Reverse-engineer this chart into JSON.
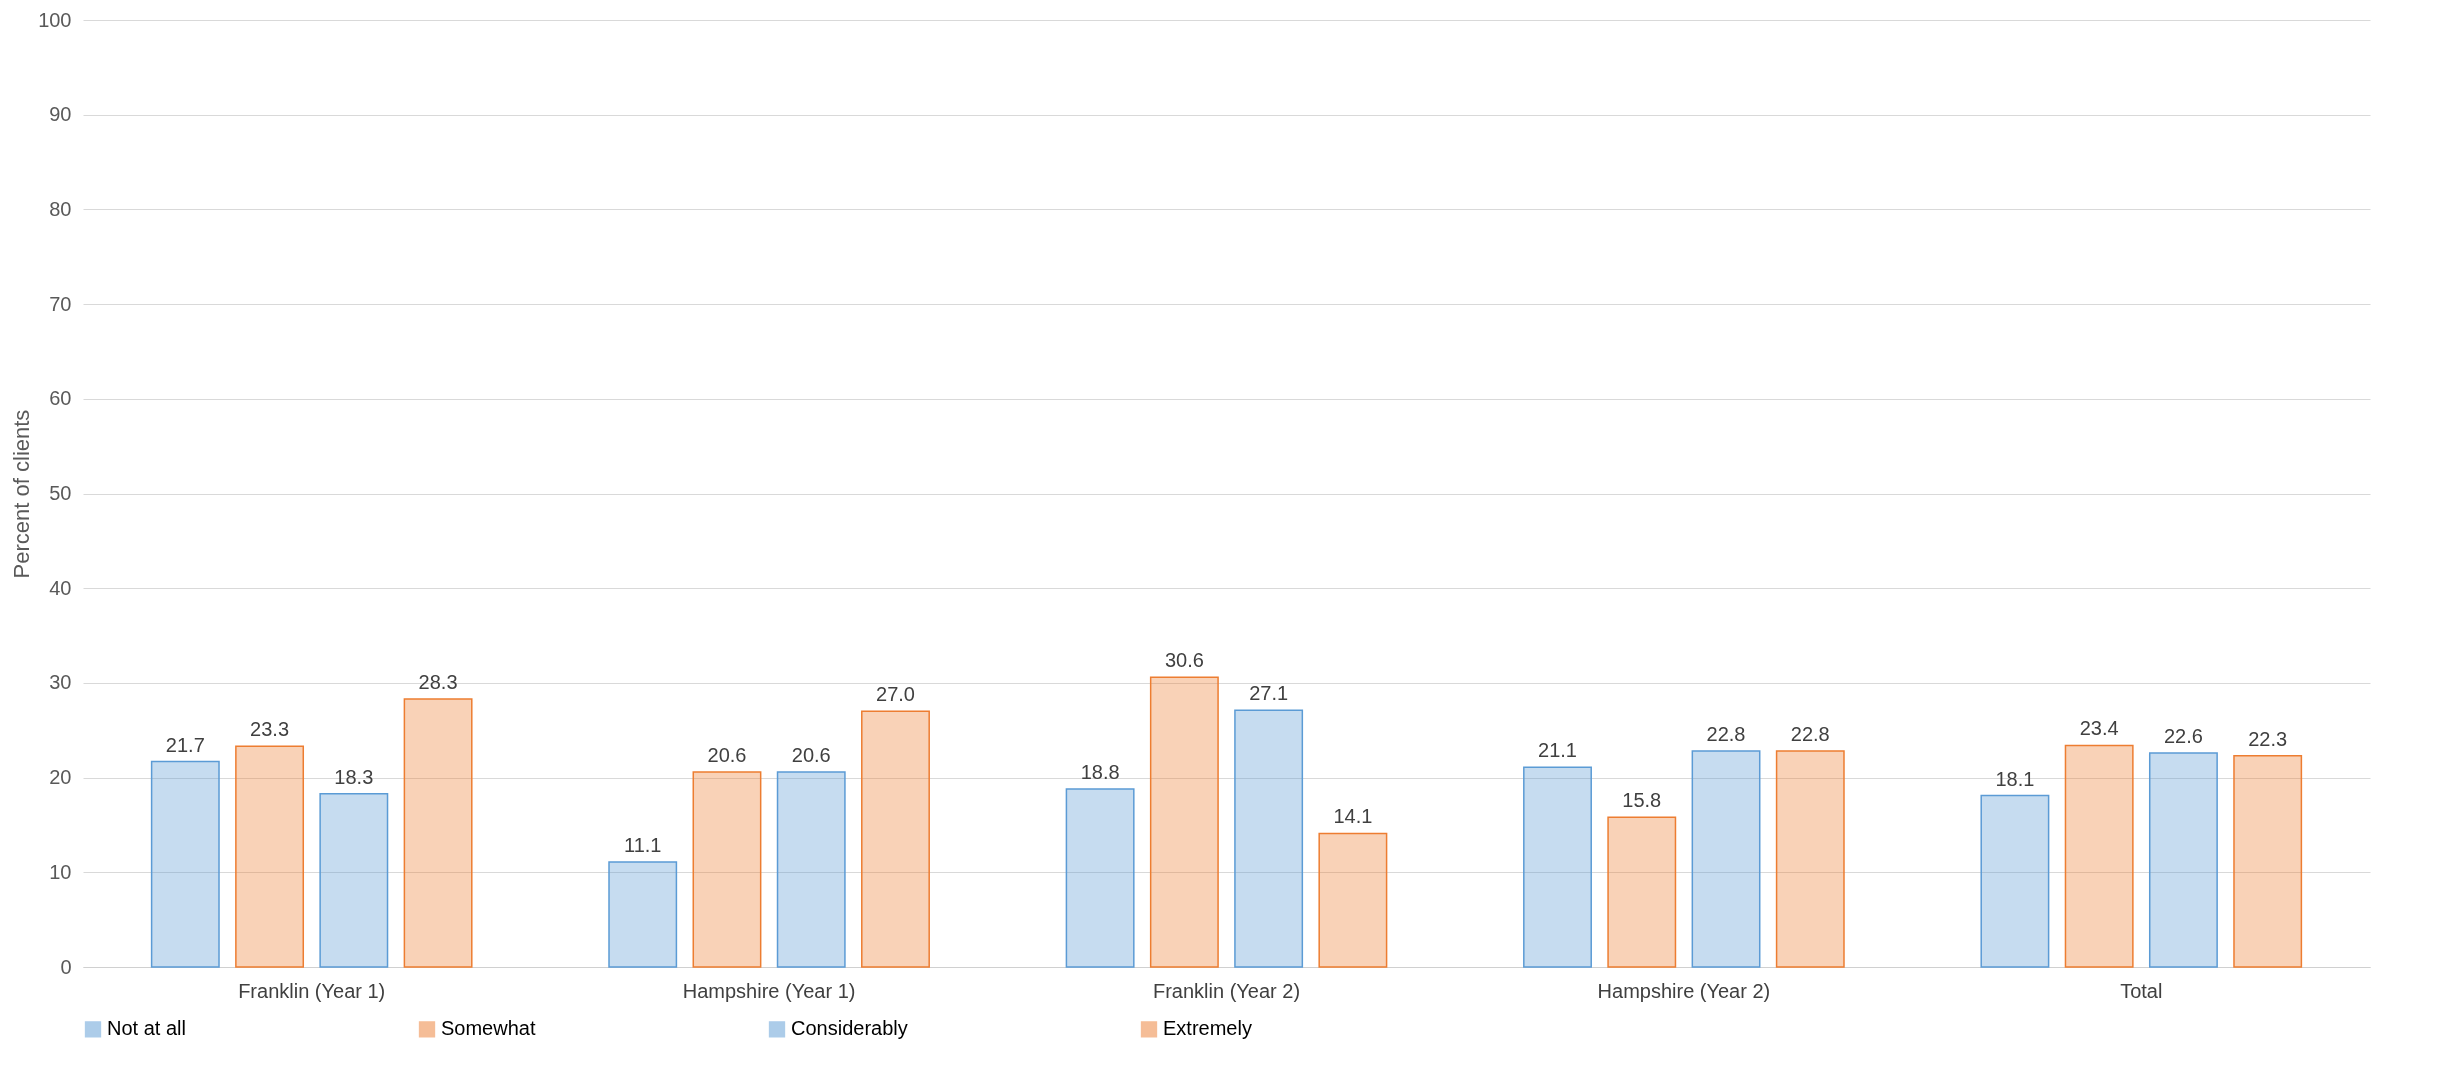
{
  "chart_data": {
    "type": "bar",
    "ylabel": "Percent of clients",
    "categories": [
      "Franklin  (Year 1)",
      "Hampshire (Year 1)",
      "Franklin  (Year 2)",
      "Hampshire (Year 2)",
      "Total"
    ],
    "series": [
      {
        "name": "Not at all",
        "color": "#5b9bd5",
        "values": [
          21.7,
          11.1,
          18.8,
          21.1,
          18.1
        ]
      },
      {
        "name": "Somewhat",
        "color": "#ed7d31",
        "values": [
          23.3,
          20.6,
          30.6,
          15.8,
          23.4
        ]
      },
      {
        "name": "Considerably",
        "color": "#5b9bd5",
        "values": [
          18.3,
          20.6,
          27.1,
          22.8,
          22.6
        ]
      },
      {
        "name": "Extremely",
        "color": "#ed7d31",
        "values": [
          28.3,
          27.0,
          14.1,
          22.8,
          22.3
        ],
        "value_labels": [
          "28.3",
          "27.0",
          "14.1",
          "22.8",
          "22.3"
        ]
      }
    ],
    "ylim": [
      0,
      100
    ],
    "yticks": [
      0,
      10,
      20,
      30,
      40,
      50,
      60,
      70,
      80,
      90,
      100
    ],
    "grid": "y",
    "legend": "bottom",
    "data_labels": true
  }
}
